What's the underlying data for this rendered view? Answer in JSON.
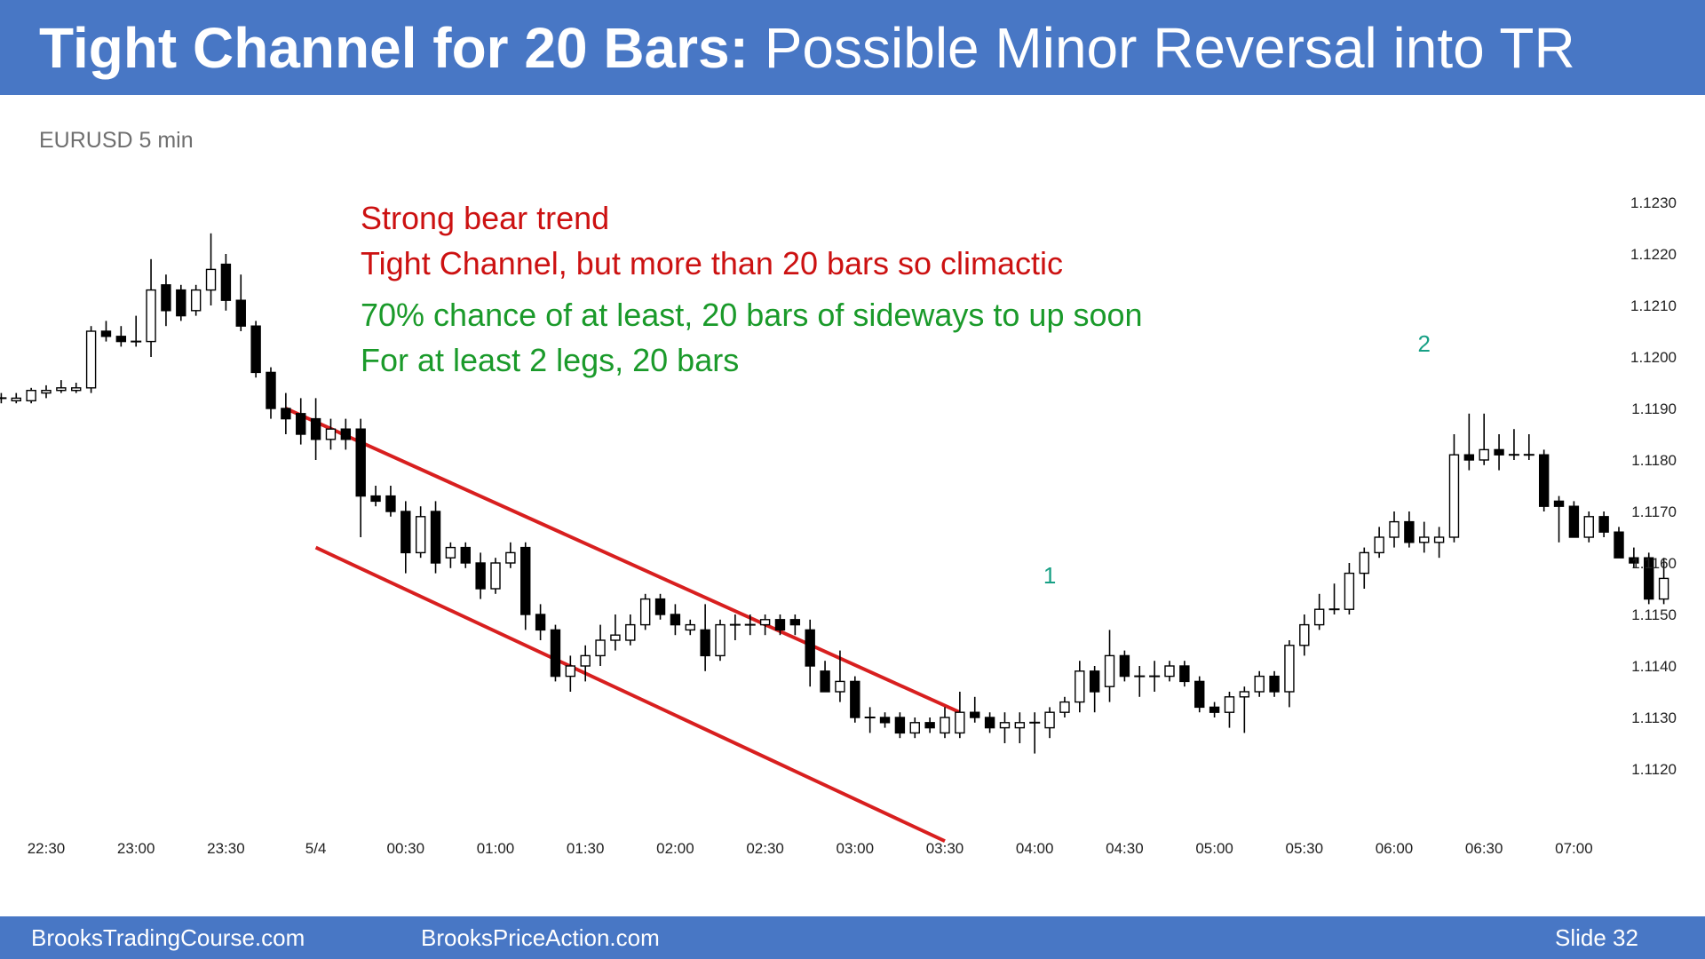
{
  "slide": {
    "title_bold": "Tight Channel for 20 Bars:",
    "title_rest": "Possible Minor Reversal into TR",
    "footer_left": "BrooksTradingCourse.com",
    "footer_center": "BrooksPriceAction.com",
    "footer_right": "Slide  32",
    "colors": {
      "header": "#4877c5",
      "annotation_red": "#cc1111",
      "annotation_green": "#1a9a2a",
      "leg_label": "#17a085",
      "channel_line": "#d81f1f"
    }
  },
  "chart_data": {
    "type": "candlestick",
    "title": "EURUSD 5 min",
    "ylim": [
      1.1113,
      1.124
    ],
    "y_ticks": [
      "1.1230",
      "1.1220",
      "1.1210",
      "1.1200",
      "1.1190",
      "1.1180",
      "1.1170",
      "1.1160",
      "1.1150",
      "1.1140",
      "1.1130",
      "1.1120"
    ],
    "x_ticks": [
      "22:30",
      "23:00",
      "23:30",
      "5/4",
      "00:30",
      "01:00",
      "01:30",
      "02:00",
      "02:30",
      "03:00",
      "03:30",
      "04:00",
      "04:30",
      "05:00",
      "05:30",
      "06:00",
      "06:30",
      "07:00"
    ],
    "start_time": "22:10",
    "bar_minutes": 5,
    "annotations": [
      {
        "text": "Strong bear trend",
        "color": "red"
      },
      {
        "text": "Tight Channel, but more than 20 bars so climactic",
        "color": "red"
      },
      {
        "text": "70% chance of at least, 20 bars of sideways to up soon",
        "color": "green"
      },
      {
        "text": "For at least 2 legs, 20 bars",
        "color": "green"
      }
    ],
    "leg_labels": [
      {
        "text": "1",
        "time": "04:05",
        "price": 1.1156
      },
      {
        "text": "2",
        "time": "06:10",
        "price": 1.1201
      }
    ],
    "channel_lines": [
      {
        "from": [
          "23:50",
          1.119
        ],
        "to": [
          "03:35",
          1.1131
        ]
      },
      {
        "from": [
          "00:00",
          1.1163
        ],
        "to": [
          "03:30",
          1.1106
        ]
      }
    ],
    "candles": [
      {
        "o": 1.1192,
        "h": 1.11935,
        "l": 1.11905,
        "c": 1.1192
      },
      {
        "o": 1.1192,
        "h": 1.1193,
        "l": 1.1191,
        "c": 1.1192
      },
      {
        "o": 1.11915,
        "h": 1.1193,
        "l": 1.1191,
        "c": 1.1192
      },
      {
        "o": 1.11915,
        "h": 1.1194,
        "l": 1.1191,
        "c": 1.11935
      },
      {
        "o": 1.1193,
        "h": 1.11945,
        "l": 1.1192,
        "c": 1.11935
      },
      {
        "o": 1.11935,
        "h": 1.11955,
        "l": 1.1193,
        "c": 1.1194
      },
      {
        "o": 1.11935,
        "h": 1.1195,
        "l": 1.1193,
        "c": 1.1194
      },
      {
        "o": 1.1194,
        "h": 1.1206,
        "l": 1.1193,
        "c": 1.1205
      },
      {
        "o": 1.1205,
        "h": 1.1207,
        "l": 1.1203,
        "c": 1.1204
      },
      {
        "o": 1.1204,
        "h": 1.1206,
        "l": 1.1202,
        "c": 1.1203
      },
      {
        "o": 1.1203,
        "h": 1.1208,
        "l": 1.1202,
        "c": 1.1203
      },
      {
        "o": 1.1203,
        "h": 1.1219,
        "l": 1.12,
        "c": 1.1213
      },
      {
        "o": 1.1214,
        "h": 1.1216,
        "l": 1.1206,
        "c": 1.1209
      },
      {
        "o": 1.1213,
        "h": 1.1214,
        "l": 1.1207,
        "c": 1.1208
      },
      {
        "o": 1.1209,
        "h": 1.1214,
        "l": 1.1208,
        "c": 1.1213
      },
      {
        "o": 1.1213,
        "h": 1.1224,
        "l": 1.121,
        "c": 1.1217
      },
      {
        "o": 1.1218,
        "h": 1.122,
        "l": 1.1209,
        "c": 1.1211
      },
      {
        "o": 1.1211,
        "h": 1.1216,
        "l": 1.1205,
        "c": 1.1206
      },
      {
        "o": 1.1206,
        "h": 1.1207,
        "l": 1.1196,
        "c": 1.1197
      },
      {
        "o": 1.1197,
        "h": 1.1198,
        "l": 1.1188,
        "c": 1.119
      },
      {
        "o": 1.119,
        "h": 1.1193,
        "l": 1.1185,
        "c": 1.1188
      },
      {
        "o": 1.1189,
        "h": 1.1192,
        "l": 1.1183,
        "c": 1.1185
      },
      {
        "o": 1.1188,
        "h": 1.1192,
        "l": 1.118,
        "c": 1.1184
      },
      {
        "o": 1.1184,
        "h": 1.1188,
        "l": 1.1182,
        "c": 1.1186
      },
      {
        "o": 1.1186,
        "h": 1.1188,
        "l": 1.1182,
        "c": 1.1184
      },
      {
        "o": 1.1186,
        "h": 1.1188,
        "l": 1.1165,
        "c": 1.1173
      },
      {
        "o": 1.1173,
        "h": 1.1175,
        "l": 1.1171,
        "c": 1.1172
      },
      {
        "o": 1.1173,
        "h": 1.1175,
        "l": 1.1169,
        "c": 1.117
      },
      {
        "o": 1.117,
        "h": 1.1172,
        "l": 1.1158,
        "c": 1.1162
      },
      {
        "o": 1.1162,
        "h": 1.1171,
        "l": 1.1161,
        "c": 1.1169
      },
      {
        "o": 1.117,
        "h": 1.1172,
        "l": 1.1158,
        "c": 1.116
      },
      {
        "o": 1.1161,
        "h": 1.1164,
        "l": 1.1159,
        "c": 1.1163
      },
      {
        "o": 1.1163,
        "h": 1.1164,
        "l": 1.1159,
        "c": 1.116
      },
      {
        "o": 1.116,
        "h": 1.1162,
        "l": 1.1153,
        "c": 1.1155
      },
      {
        "o": 1.1155,
        "h": 1.1161,
        "l": 1.1154,
        "c": 1.116
      },
      {
        "o": 1.116,
        "h": 1.1164,
        "l": 1.1159,
        "c": 1.1162
      },
      {
        "o": 1.1163,
        "h": 1.1164,
        "l": 1.1147,
        "c": 1.115
      },
      {
        "o": 1.115,
        "h": 1.1152,
        "l": 1.1145,
        "c": 1.1147
      },
      {
        "o": 1.1147,
        "h": 1.1148,
        "l": 1.1137,
        "c": 1.1138
      },
      {
        "o": 1.1138,
        "h": 1.1142,
        "l": 1.1135,
        "c": 1.114
      },
      {
        "o": 1.114,
        "h": 1.1144,
        "l": 1.1137,
        "c": 1.1142
      },
      {
        "o": 1.1142,
        "h": 1.1148,
        "l": 1.114,
        "c": 1.1145
      },
      {
        "o": 1.1145,
        "h": 1.115,
        "l": 1.1143,
        "c": 1.1146
      },
      {
        "o": 1.1145,
        "h": 1.115,
        "l": 1.1144,
        "c": 1.1148
      },
      {
        "o": 1.1148,
        "h": 1.1154,
        "l": 1.1147,
        "c": 1.1153
      },
      {
        "o": 1.1153,
        "h": 1.1154,
        "l": 1.1149,
        "c": 1.115
      },
      {
        "o": 1.115,
        "h": 1.1152,
        "l": 1.1146,
        "c": 1.1148
      },
      {
        "o": 1.1147,
        "h": 1.1149,
        "l": 1.1146,
        "c": 1.1148
      },
      {
        "o": 1.1147,
        "h": 1.1152,
        "l": 1.1139,
        "c": 1.1142
      },
      {
        "o": 1.1142,
        "h": 1.1149,
        "l": 1.1141,
        "c": 1.1148
      },
      {
        "o": 1.1148,
        "h": 1.115,
        "l": 1.1145,
        "c": 1.1148
      },
      {
        "o": 1.1148,
        "h": 1.115,
        "l": 1.1146,
        "c": 1.1148
      },
      {
        "o": 1.1148,
        "h": 1.115,
        "l": 1.1146,
        "c": 1.1149
      },
      {
        "o": 1.1149,
        "h": 1.115,
        "l": 1.1146,
        "c": 1.1147
      },
      {
        "o": 1.1149,
        "h": 1.115,
        "l": 1.1146,
        "c": 1.1148
      },
      {
        "o": 1.1147,
        "h": 1.1149,
        "l": 1.1136,
        "c": 1.114
      },
      {
        "o": 1.1139,
        "h": 1.1141,
        "l": 1.1135,
        "c": 1.1135
      },
      {
        "o": 1.1135,
        "h": 1.1143,
        "l": 1.1133,
        "c": 1.1137
      },
      {
        "o": 1.1137,
        "h": 1.1138,
        "l": 1.1129,
        "c": 1.113
      },
      {
        "o": 1.113,
        "h": 1.1132,
        "l": 1.1127,
        "c": 1.113
      },
      {
        "o": 1.113,
        "h": 1.1131,
        "l": 1.1128,
        "c": 1.1129
      },
      {
        "o": 1.113,
        "h": 1.1131,
        "l": 1.1126,
        "c": 1.1127
      },
      {
        "o": 1.1127,
        "h": 1.113,
        "l": 1.1126,
        "c": 1.1129
      },
      {
        "o": 1.1129,
        "h": 1.113,
        "l": 1.1127,
        "c": 1.1128
      },
      {
        "o": 1.1127,
        "h": 1.1132,
        "l": 1.1126,
        "c": 1.113
      },
      {
        "o": 1.1127,
        "h": 1.1135,
        "l": 1.1126,
        "c": 1.1131
      },
      {
        "o": 1.1131,
        "h": 1.1134,
        "l": 1.1129,
        "c": 1.113
      },
      {
        "o": 1.113,
        "h": 1.1131,
        "l": 1.1127,
        "c": 1.1128
      },
      {
        "o": 1.1128,
        "h": 1.1131,
        "l": 1.1125,
        "c": 1.1129
      },
      {
        "o": 1.1128,
        "h": 1.1131,
        "l": 1.1125,
        "c": 1.1129
      },
      {
        "o": 1.1129,
        "h": 1.1131,
        "l": 1.1123,
        "c": 1.1129
      },
      {
        "o": 1.1128,
        "h": 1.1132,
        "l": 1.1126,
        "c": 1.1131
      },
      {
        "o": 1.1131,
        "h": 1.1134,
        "l": 1.113,
        "c": 1.1133
      },
      {
        "o": 1.1133,
        "h": 1.1141,
        "l": 1.1131,
        "c": 1.1139
      },
      {
        "o": 1.1139,
        "h": 1.114,
        "l": 1.1131,
        "c": 1.1135
      },
      {
        "o": 1.1136,
        "h": 1.1147,
        "l": 1.1133,
        "c": 1.1142
      },
      {
        "o": 1.1142,
        "h": 1.1143,
        "l": 1.1137,
        "c": 1.1138
      },
      {
        "o": 1.1138,
        "h": 1.114,
        "l": 1.1134,
        "c": 1.1138
      },
      {
        "o": 1.1138,
        "h": 1.1141,
        "l": 1.1135,
        "c": 1.1138
      },
      {
        "o": 1.1138,
        "h": 1.1141,
        "l": 1.1137,
        "c": 1.114
      },
      {
        "o": 1.114,
        "h": 1.1141,
        "l": 1.1136,
        "c": 1.1137
      },
      {
        "o": 1.1137,
        "h": 1.1138,
        "l": 1.1131,
        "c": 1.1132
      },
      {
        "o": 1.1132,
        "h": 1.1133,
        "l": 1.113,
        "c": 1.1131
      },
      {
        "o": 1.1131,
        "h": 1.1135,
        "l": 1.1128,
        "c": 1.1134
      },
      {
        "o": 1.1134,
        "h": 1.1136,
        "l": 1.1127,
        "c": 1.1135
      },
      {
        "o": 1.1135,
        "h": 1.1139,
        "l": 1.1134,
        "c": 1.1138
      },
      {
        "o": 1.1138,
        "h": 1.1139,
        "l": 1.1134,
        "c": 1.1135
      },
      {
        "o": 1.1135,
        "h": 1.1145,
        "l": 1.1132,
        "c": 1.1144
      },
      {
        "o": 1.1144,
        "h": 1.115,
        "l": 1.1142,
        "c": 1.1148
      },
      {
        "o": 1.1148,
        "h": 1.1154,
        "l": 1.1147,
        "c": 1.1151
      },
      {
        "o": 1.1151,
        "h": 1.1156,
        "l": 1.115,
        "c": 1.1151
      },
      {
        "o": 1.1151,
        "h": 1.116,
        "l": 1.115,
        "c": 1.1158
      },
      {
        "o": 1.1158,
        "h": 1.1163,
        "l": 1.1155,
        "c": 1.1162
      },
      {
        "o": 1.1162,
        "h": 1.1167,
        "l": 1.1161,
        "c": 1.1165
      },
      {
        "o": 1.1165,
        "h": 1.117,
        "l": 1.1163,
        "c": 1.1168
      },
      {
        "o": 1.1168,
        "h": 1.117,
        "l": 1.1163,
        "c": 1.1164
      },
      {
        "o": 1.1164,
        "h": 1.1168,
        "l": 1.1162,
        "c": 1.1165
      },
      {
        "o": 1.1164,
        "h": 1.1167,
        "l": 1.1161,
        "c": 1.1165
      },
      {
        "o": 1.1165,
        "h": 1.1185,
        "l": 1.1164,
        "c": 1.1181
      },
      {
        "o": 1.1181,
        "h": 1.1189,
        "l": 1.1178,
        "c": 1.118
      },
      {
        "o": 1.118,
        "h": 1.1189,
        "l": 1.1179,
        "c": 1.1182
      },
      {
        "o": 1.1182,
        "h": 1.1185,
        "l": 1.1178,
        "c": 1.1181
      },
      {
        "o": 1.1181,
        "h": 1.1186,
        "l": 1.118,
        "c": 1.1181
      },
      {
        "o": 1.1181,
        "h": 1.1185,
        "l": 1.118,
        "c": 1.1181
      },
      {
        "o": 1.1181,
        "h": 1.1182,
        "l": 1.117,
        "c": 1.1171
      },
      {
        "o": 1.1172,
        "h": 1.1173,
        "l": 1.1164,
        "c": 1.1171
      },
      {
        "o": 1.1171,
        "h": 1.1172,
        "l": 1.1165,
        "c": 1.1165
      },
      {
        "o": 1.1165,
        "h": 1.117,
        "l": 1.1164,
        "c": 1.1169
      },
      {
        "o": 1.1169,
        "h": 1.117,
        "l": 1.1165,
        "c": 1.1166
      },
      {
        "o": 1.1166,
        "h": 1.1167,
        "l": 1.1161,
        "c": 1.1161
      },
      {
        "o": 1.1161,
        "h": 1.1163,
        "l": 1.1159,
        "c": 1.116
      },
      {
        "o": 1.1161,
        "h": 1.1162,
        "l": 1.1152,
        "c": 1.1153
      },
      {
        "o": 1.1153,
        "h": 1.1161,
        "l": 1.1152,
        "c": 1.1157
      }
    ]
  }
}
